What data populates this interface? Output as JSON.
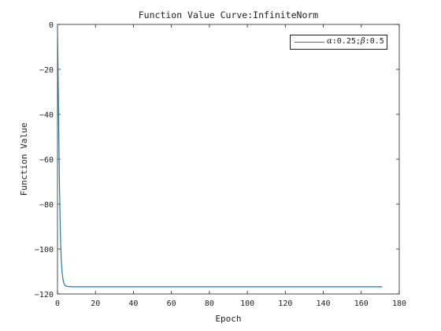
{
  "chart_data": {
    "type": "line",
    "title": "Function Value Curve:InfiniteNorm",
    "xlabel": "Epoch",
    "ylabel": "Function Value",
    "xlim": [
      0,
      180
    ],
    "ylim": [
      -120,
      0
    ],
    "xticks": [
      0,
      20,
      40,
      60,
      80,
      100,
      120,
      140,
      160,
      180
    ],
    "yticks": [
      0,
      -20,
      -40,
      -60,
      -80,
      -100,
      -120
    ],
    "xtick_labels": [
      "0",
      "20",
      "40",
      "60",
      "80",
      "100",
      "120",
      "140",
      "160",
      "180"
    ],
    "ytick_labels": [
      "0",
      "−20",
      "−40",
      "−60",
      "−80",
      "−100",
      "−120"
    ],
    "grid": false,
    "legend_position": "top-right",
    "series": [
      {
        "name": "α:0.25;β:0.5",
        "color": "#1f77b4",
        "x": [
          0,
          0.5,
          1,
          1.5,
          2,
          2.5,
          3,
          3.5,
          4,
          5,
          6,
          8,
          10,
          20,
          50,
          100,
          150,
          171
        ],
        "y": [
          0,
          -35,
          -70,
          -93,
          -105,
          -111,
          -114,
          -115.5,
          -116.2,
          -116.6,
          -116.7,
          -116.8,
          -116.8,
          -116.8,
          -116.8,
          -116.8,
          -116.8,
          -116.8
        ]
      }
    ]
  },
  "legend": {
    "alpha_symbol": "α",
    "alpha_value": ":0.25;",
    "beta_symbol": "β",
    "beta_value": ":0.5"
  }
}
